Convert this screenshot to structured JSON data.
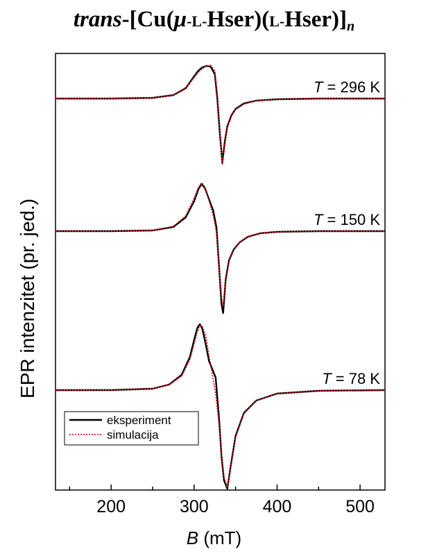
{
  "title": {
    "prefix": "trans",
    "body": "-[Cu(",
    "mu": "μ",
    "l1": "-L-",
    "h1": "Hser)(",
    "l2": "L-",
    "h2": "Hser)]",
    "sub": "n"
  },
  "chart_data": {
    "type": "line",
    "xlabel": "B (mT)",
    "ylabel": "EPR intenzitet (pr. jed.)",
    "xlim": [
      133,
      530
    ],
    "xticks": [
      200,
      300,
      400,
      500
    ],
    "grid": false,
    "legend_position": "bottom-left",
    "legend": [
      {
        "name": "eksperiment",
        "color": "#000000",
        "style": "solid"
      },
      {
        "name": "simulacija",
        "color": "#e8141c",
        "style": "dotted"
      }
    ],
    "panels": [
      {
        "label": "T = 296 K",
        "label_prefix": "T",
        "label_suffix": " = 296 K",
        "eksperiment": {
          "x": [
            133,
            200,
            250,
            275,
            290,
            300,
            305,
            310,
            315,
            320,
            325,
            328,
            331,
            334,
            337,
            340,
            345,
            350,
            360,
            375,
            400,
            450,
            530
          ],
          "y": [
            0,
            0,
            0.01,
            0.05,
            0.15,
            0.32,
            0.4,
            0.45,
            0.47,
            0.46,
            0.35,
            0.0,
            -0.5,
            -0.92,
            -0.62,
            -0.4,
            -0.24,
            -0.15,
            -0.07,
            -0.03,
            -0.01,
            0,
            0
          ]
        },
        "simulacija": {
          "x": [
            133,
            200,
            250,
            275,
            290,
            300,
            305,
            310,
            315,
            320,
            325,
            328,
            331,
            334,
            337,
            340,
            345,
            350,
            360,
            375,
            400,
            450,
            530
          ],
          "y": [
            0,
            0,
            0.01,
            0.05,
            0.16,
            0.3,
            0.38,
            0.43,
            0.47,
            0.48,
            0.4,
            0.05,
            -0.45,
            -0.96,
            -0.66,
            -0.42,
            -0.25,
            -0.16,
            -0.08,
            -0.03,
            -0.01,
            0,
            0
          ]
        }
      },
      {
        "label": "T = 150 K",
        "label_prefix": "T",
        "label_suffix": " = 150 K",
        "eksperiment": {
          "x": [
            133,
            200,
            250,
            275,
            290,
            300,
            305,
            309,
            313,
            318,
            323,
            327,
            330,
            333,
            335,
            338,
            342,
            348,
            355,
            365,
            380,
            400,
            450,
            530
          ],
          "y": [
            0,
            0,
            0.01,
            0.06,
            0.2,
            0.43,
            0.6,
            0.68,
            0.62,
            0.46,
            0.3,
            0.05,
            -0.5,
            -1.05,
            -1.18,
            -0.7,
            -0.42,
            -0.26,
            -0.16,
            -0.08,
            -0.03,
            -0.01,
            0,
            0
          ]
        },
        "simulacija": {
          "x": [
            133,
            200,
            250,
            275,
            290,
            300,
            305,
            309,
            313,
            318,
            323,
            327,
            330,
            333,
            335,
            338,
            342,
            348,
            355,
            365,
            380,
            400,
            450,
            530
          ],
          "y": [
            0,
            0,
            0.01,
            0.07,
            0.22,
            0.48,
            0.63,
            0.7,
            0.64,
            0.44,
            0.22,
            -0.02,
            -0.52,
            -0.96,
            -1.08,
            -0.72,
            -0.43,
            -0.27,
            -0.16,
            -0.08,
            -0.03,
            -0.01,
            0,
            0
          ]
        }
      },
      {
        "label": "T = 78 K",
        "label_prefix": "T",
        "label_suffix": " = 78 K",
        "eksperiment": {
          "x": [
            133,
            200,
            250,
            270,
            285,
            295,
            300,
            304,
            307,
            310,
            314,
            318,
            322,
            326,
            330,
            333,
            336,
            340,
            344,
            350,
            360,
            375,
            400,
            450,
            530
          ],
          "y": [
            0,
            0,
            0.02,
            0.08,
            0.22,
            0.48,
            0.72,
            0.9,
            0.95,
            0.88,
            0.66,
            0.42,
            0.3,
            0.18,
            -0.4,
            -0.95,
            -1.3,
            -1.42,
            -1.1,
            -0.66,
            -0.33,
            -0.15,
            -0.05,
            -0.01,
            0
          ]
        },
        "simulacija": {
          "x": [
            133,
            200,
            250,
            270,
            285,
            295,
            300,
            304,
            307,
            310,
            314,
            318,
            322,
            326,
            330,
            333,
            336,
            340,
            344,
            350,
            360,
            375,
            400,
            450,
            530
          ],
          "y": [
            0,
            0,
            0.02,
            0.08,
            0.2,
            0.44,
            0.66,
            0.84,
            0.93,
            0.92,
            0.78,
            0.5,
            0.22,
            -0.06,
            -0.48,
            -0.92,
            -1.25,
            -1.4,
            -1.12,
            -0.68,
            -0.34,
            -0.15,
            -0.05,
            -0.01,
            0
          ]
        }
      }
    ]
  }
}
